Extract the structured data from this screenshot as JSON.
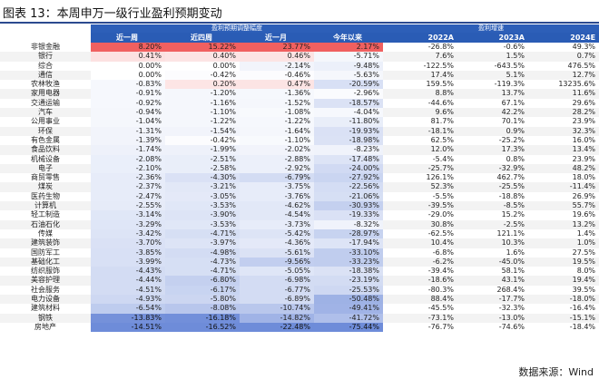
{
  "title": "图表 13：本周申万一级行业盈利预期变动",
  "source": "数据来源：Wind",
  "group_headers": {
    "revision": "盈利预期调整幅度",
    "growth": "盈利增速"
  },
  "columns": [
    "近一周",
    "近四周",
    "近一月",
    "今年以来",
    "2022A",
    "2023A",
    "2024E"
  ],
  "colors": {
    "header_blue": "#2a5cb5",
    "positive_red": "#f08080",
    "negative_blue": "#6f8fd8"
  },
  "rows": [
    {
      "name": "非银金融",
      "v": [
        "8.20%",
        "15.22%",
        "23.77%",
        "2.17%",
        "-26.8%",
        "-0.6%",
        "49.3%"
      ]
    },
    {
      "name": "银行",
      "v": [
        "0.41%",
        "0.40%",
        "0.46%",
        "-5.71%",
        "7.6%",
        "1.5%",
        "0.7%"
      ]
    },
    {
      "name": "综合",
      "v": [
        "0.00%",
        "0.00%",
        "-2.14%",
        "-9.48%",
        "-122.5%",
        "-643.5%",
        "476.5%"
      ]
    },
    {
      "name": "通信",
      "v": [
        "0.00%",
        "-0.42%",
        "-0.46%",
        "-5.63%",
        "17.4%",
        "5.1%",
        "12.7%"
      ]
    },
    {
      "name": "农林牧渔",
      "v": [
        "-0.83%",
        "0.20%",
        "0.47%",
        "-20.59%",
        "159.5%",
        "-119.3%",
        "13235.6%"
      ]
    },
    {
      "name": "家用电器",
      "v": [
        "-0.91%",
        "-1.20%",
        "-1.36%",
        "-2.96%",
        "8.8%",
        "13.7%",
        "11.6%"
      ]
    },
    {
      "name": "交通运输",
      "v": [
        "-0.92%",
        "-1.16%",
        "-1.52%",
        "-18.57%",
        "-44.6%",
        "67.1%",
        "29.6%"
      ]
    },
    {
      "name": "汽车",
      "v": [
        "-0.94%",
        "-1.10%",
        "-1.08%",
        "-4.04%",
        "9.6%",
        "42.2%",
        "28.2%"
      ]
    },
    {
      "name": "公用事业",
      "v": [
        "-1.04%",
        "-1.22%",
        "-1.22%",
        "-11.80%",
        "81.7%",
        "70.1%",
        "23.9%"
      ]
    },
    {
      "name": "环保",
      "v": [
        "-1.31%",
        "-1.54%",
        "-1.64%",
        "-19.93%",
        "-18.1%",
        "0.9%",
        "32.3%"
      ]
    },
    {
      "name": "有色金属",
      "v": [
        "-1.39%",
        "-0.42%",
        "-1.10%",
        "-18.98%",
        "62.5%",
        "-25.2%",
        "16.0%"
      ]
    },
    {
      "name": "食品饮料",
      "v": [
        "-1.74%",
        "-1.99%",
        "-2.02%",
        "-8.23%",
        "12.0%",
        "17.3%",
        "13.4%"
      ]
    },
    {
      "name": "机械设备",
      "v": [
        "-2.08%",
        "-2.51%",
        "-2.88%",
        "-17.48%",
        "-5.4%",
        "0.8%",
        "23.9%"
      ]
    },
    {
      "name": "电子",
      "v": [
        "-2.10%",
        "-2.58%",
        "-2.92%",
        "-24.00%",
        "-25.7%",
        "-32.9%",
        "48.2%"
      ]
    },
    {
      "name": "商贸零售",
      "v": [
        "-2.36%",
        "-4.30%",
        "-6.79%",
        "-27.92%",
        "126.1%",
        "462.7%",
        "18.0%"
      ]
    },
    {
      "name": "煤炭",
      "v": [
        "-2.37%",
        "-3.21%",
        "-3.75%",
        "-22.56%",
        "52.3%",
        "-25.5%",
        "-11.4%"
      ]
    },
    {
      "name": "医药生物",
      "v": [
        "-2.47%",
        "-3.05%",
        "-3.76%",
        "-21.06%",
        "-5.5%",
        "-18.8%",
        "26.9%"
      ]
    },
    {
      "name": "计算机",
      "v": [
        "-2.55%",
        "-3.53%",
        "-4.62%",
        "-30.93%",
        "-39.5%",
        "-8.5%",
        "55.7%"
      ]
    },
    {
      "name": "轻工制造",
      "v": [
        "-3.14%",
        "-3.90%",
        "-4.54%",
        "-19.33%",
        "-29.0%",
        "15.2%",
        "19.6%"
      ]
    },
    {
      "name": "石油石化",
      "v": [
        "-3.29%",
        "-3.53%",
        "-3.73%",
        "-8.32%",
        "30.8%",
        "-2.5%",
        "13.2%"
      ]
    },
    {
      "name": "传媒",
      "v": [
        "-3.42%",
        "-4.71%",
        "-5.42%",
        "-28.97%",
        "-62.5%",
        "121.1%",
        "1.4%"
      ]
    },
    {
      "name": "建筑装饰",
      "v": [
        "-3.70%",
        "-3.97%",
        "-4.36%",
        "-17.94%",
        "10.4%",
        "10.3%",
        "1.0%"
      ]
    },
    {
      "name": "国防军工",
      "v": [
        "-3.85%",
        "-4.98%",
        "-5.61%",
        "-33.10%",
        "-6.8%",
        "1.6%",
        "27.5%"
      ]
    },
    {
      "name": "基础化工",
      "v": [
        "-3.99%",
        "-4.73%",
        "-9.56%",
        "-33.23%",
        "-6.2%",
        "-45.0%",
        "19.5%"
      ]
    },
    {
      "name": "纺织服饰",
      "v": [
        "-4.43%",
        "-4.71%",
        "-5.05%",
        "-18.38%",
        "-39.4%",
        "58.1%",
        "8.0%"
      ]
    },
    {
      "name": "美容护理",
      "v": [
        "-4.44%",
        "-6.80%",
        "-6.98%",
        "-23.19%",
        "-18.6%",
        "43.1%",
        "19.4%"
      ]
    },
    {
      "name": "社会服务",
      "v": [
        "-4.51%",
        "-6.17%",
        "-6.77%",
        "-25.53%",
        "-80.3%",
        "268.4%",
        "39.5%"
      ]
    },
    {
      "name": "电力设备",
      "v": [
        "-4.93%",
        "-5.80%",
        "-6.89%",
        "-50.48%",
        "88.4%",
        "-17.7%",
        "-18.0%"
      ]
    },
    {
      "name": "建筑材料",
      "v": [
        "-6.54%",
        "-8.08%",
        "-10.74%",
        "-49.41%",
        "-45.5%",
        "-32.3%",
        "-16.4%"
      ]
    },
    {
      "name": "钢铁",
      "v": [
        "-13.83%",
        "-16.18%",
        "-14.82%",
        "-41.72%",
        "-73.1%",
        "-13.0%",
        "-15.1%"
      ]
    },
    {
      "name": "房地产",
      "v": [
        "-14.51%",
        "-16.52%",
        "-22.48%",
        "-75.44%",
        "-76.7%",
        "-74.6%",
        "-18.4%"
      ]
    }
  ]
}
